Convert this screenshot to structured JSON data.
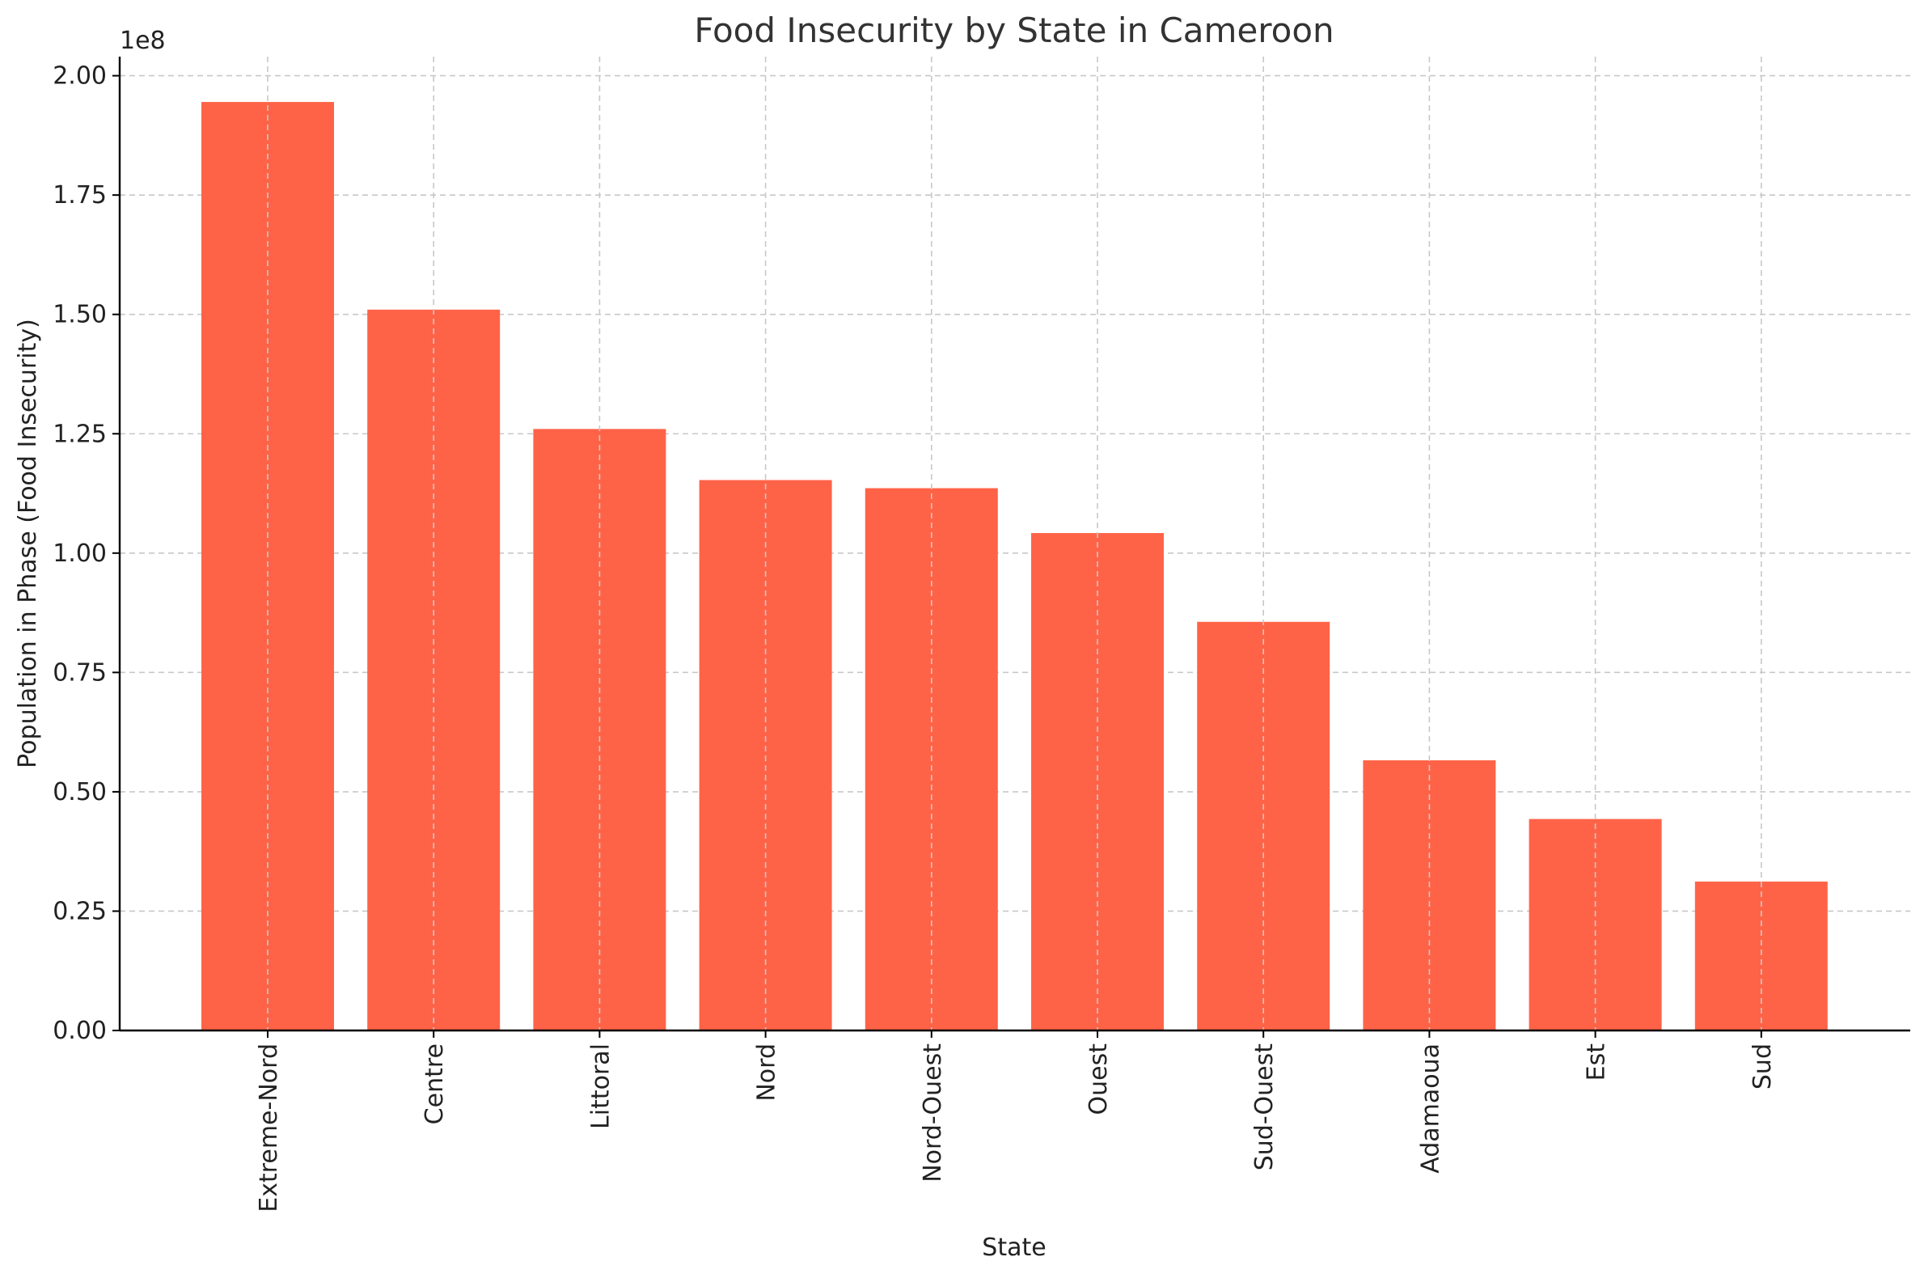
{
  "chart_data": {
    "type": "bar",
    "title": "Food Insecurity by State in Cameroon",
    "xlabel": "State",
    "ylabel": "Population in Phase (Food Insecurity)",
    "offset_text": "1e8",
    "categories": [
      "Extreme-Nord",
      "Centre",
      "Littoral",
      "Nord",
      "Nord-Ouest",
      "Ouest",
      "Sud-Ouest",
      "Adamaoua",
      "Est",
      "Sud"
    ],
    "values": [
      194500000,
      151000000,
      126000000,
      115300000,
      113600000,
      104200000,
      85600000,
      56600000,
      44300000,
      31200000
    ],
    "ylim": [
      0,
      204000000
    ],
    "y_ticks": [
      0,
      25000000,
      50000000,
      75000000,
      100000000,
      125000000,
      150000000,
      175000000,
      200000000
    ],
    "y_tick_labels": [
      "0.00",
      "0.25",
      "0.50",
      "0.75",
      "1.00",
      "1.25",
      "1.50",
      "1.75",
      "2.00"
    ],
    "grid": true,
    "bar_color": "#ff6347"
  }
}
